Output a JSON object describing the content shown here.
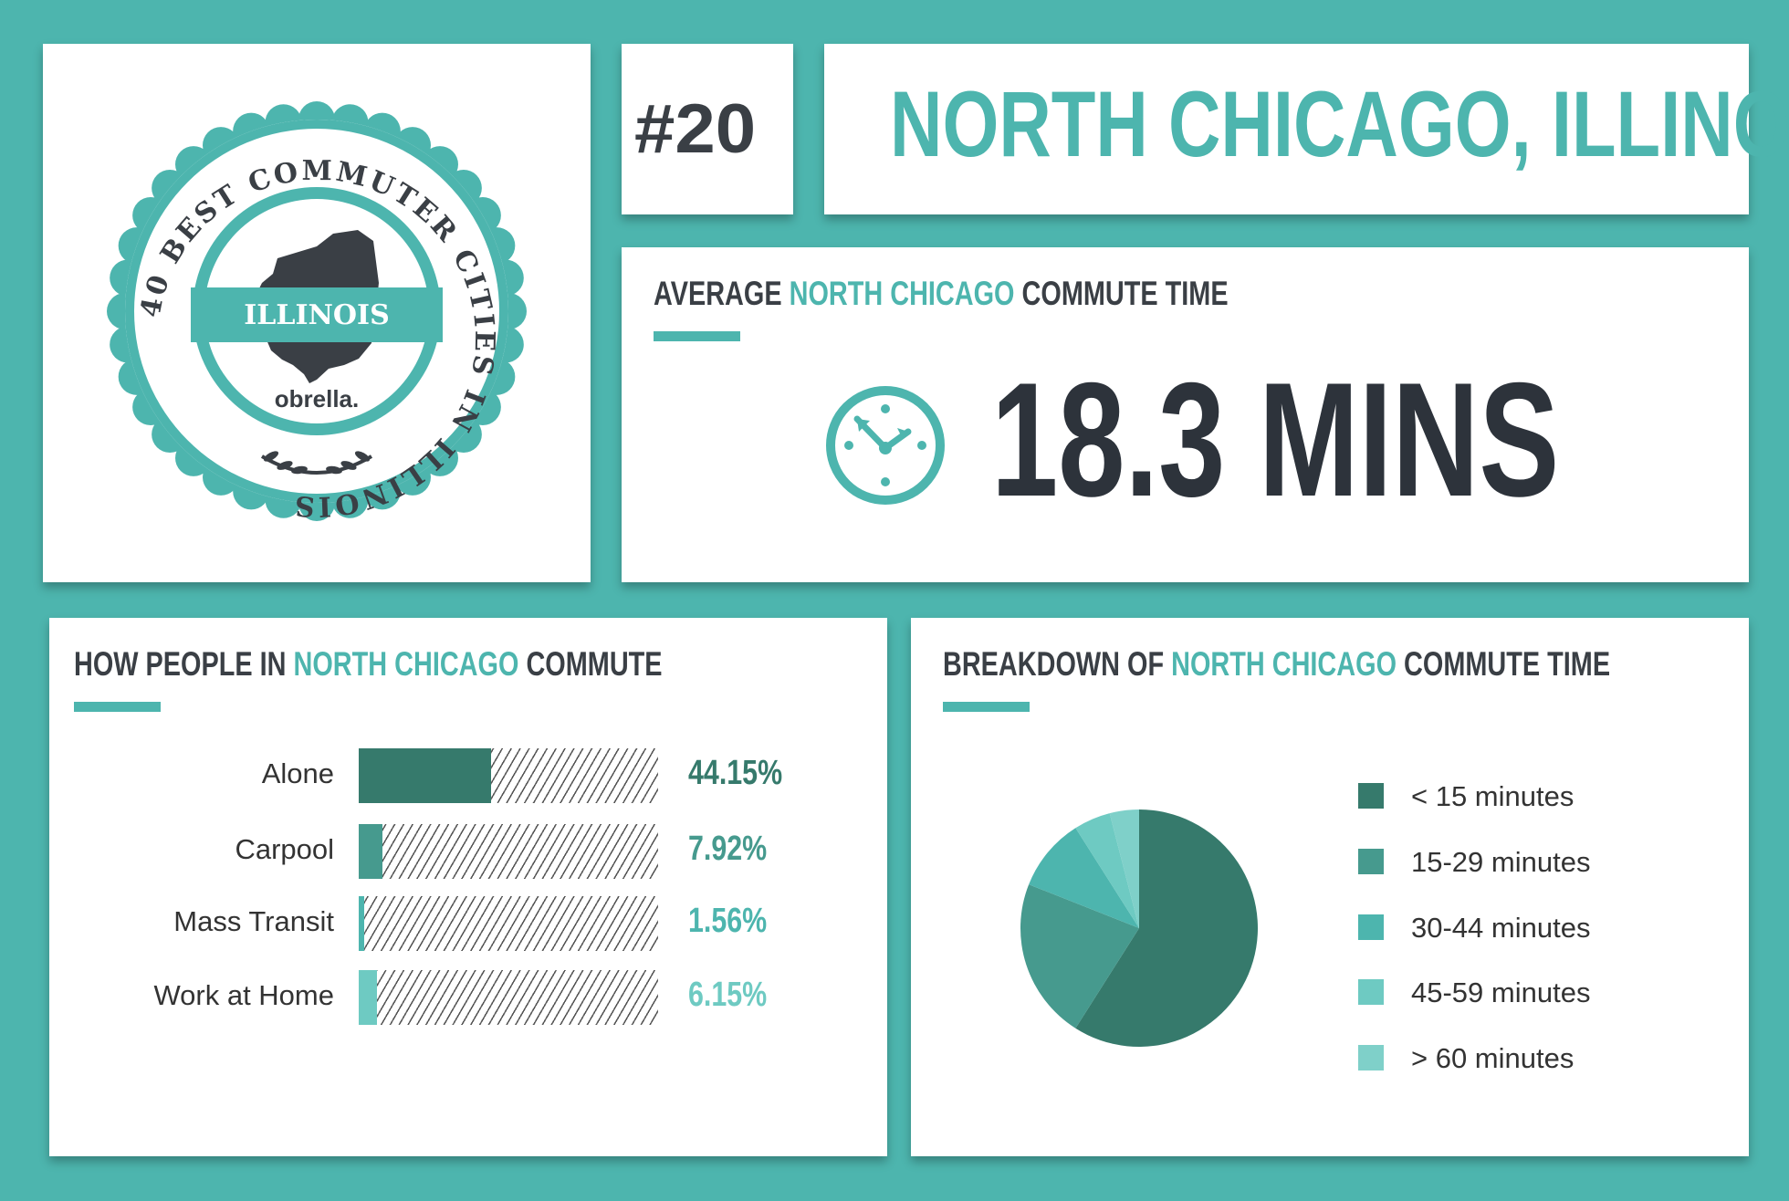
{
  "badge": {
    "ring_text": "40 BEST COMMUTER CITIES IN ILLINOIS",
    "state_label": "ILLINOIS",
    "brand": "obrella."
  },
  "rank": "#20",
  "city": "NORTH CHICAGO, ILLINOIS",
  "average": {
    "title_prefix": "AVERAGE ",
    "title_highlight": "NORTH CHICAGO",
    "title_suffix": " COMMUTE TIME",
    "value": "18.3 MINS"
  },
  "how": {
    "title_prefix": "HOW PEOPLE IN ",
    "title_highlight": "NORTH CHICAGO",
    "title_suffix": " COMMUTE"
  },
  "breakdown": {
    "title_prefix": "BREAKDOWN OF ",
    "title_highlight": "NORTH CHICAGO",
    "title_suffix": " COMMUTE TIME"
  },
  "colors": {
    "teal": "#4db5ae",
    "dark_text": "#3a3f45"
  },
  "chart_data": [
    {
      "type": "bar",
      "orientation": "horizontal",
      "categories": [
        "Alone",
        "Carpool",
        "Mass Transit",
        "Work at Home"
      ],
      "values": [
        44.15,
        7.92,
        1.56,
        6.15
      ],
      "value_labels": [
        "44.15%",
        "7.92%",
        "1.56%",
        "6.15%"
      ],
      "colors": [
        "#367a6c",
        "#469a8e",
        "#4db5ae",
        "#6ecac2"
      ],
      "ylim": [
        0,
        100
      ]
    },
    {
      "type": "pie",
      "categories": [
        "< 15 minutes",
        "15-29 minutes",
        "30-44 minutes",
        "45-59 minutes",
        "> 60 minutes"
      ],
      "values": [
        59,
        22,
        10,
        5,
        4
      ],
      "colors": [
        "#367a6c",
        "#469a8e",
        "#4db5ae",
        "#6ecac2",
        "#7fd0c9"
      ],
      "legend": "right"
    }
  ]
}
